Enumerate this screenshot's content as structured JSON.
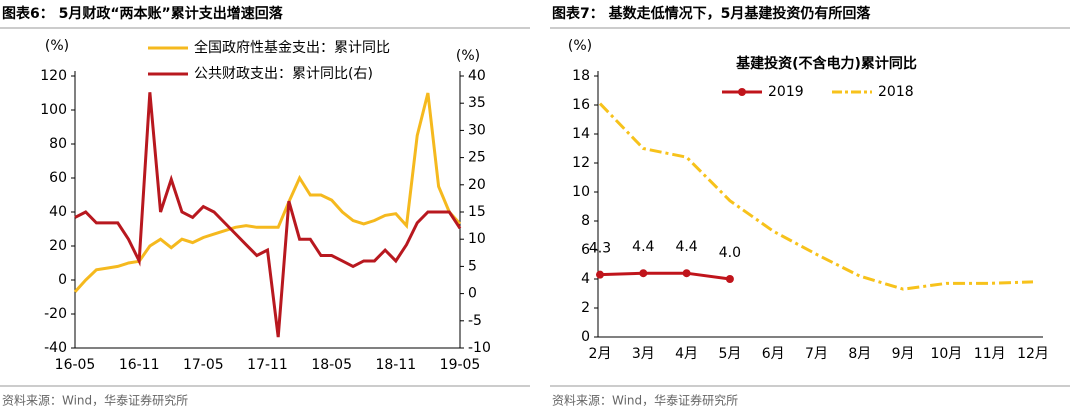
{
  "chart_data": [
    {
      "type": "line",
      "title": "图表6：  5月财政“两本账”累计支出增速回落",
      "source": "资料来源：Wind，华泰证券研究所",
      "ylabel": "(%)",
      "y2label": "(%)",
      "categories": [
        "16-05",
        null,
        null,
        null,
        null,
        null,
        "16-11",
        null,
        null,
        null,
        null,
        null,
        "17-05",
        null,
        null,
        null,
        null,
        null,
        "17-11",
        null,
        null,
        null,
        null,
        null,
        "18-05",
        null,
        null,
        null,
        null,
        null,
        "18-11",
        null,
        null,
        null,
        null,
        null,
        "19-05"
      ],
      "ylim": [
        -40,
        120
      ],
      "yticks": [
        -40,
        -20,
        0,
        20,
        40,
        60,
        80,
        100,
        120
      ],
      "y2lim": [
        -10,
        40
      ],
      "y2ticks": [
        -10,
        -5,
        0,
        5,
        10,
        15,
        20,
        25,
        30,
        35,
        40
      ],
      "legend": "top-center",
      "series": [
        {
          "name": "全国政府性基金支出：累计同比",
          "color": "#f5b91e",
          "values": [
            -7,
            0,
            6,
            7,
            8,
            10,
            11,
            20,
            24,
            19,
            24,
            22,
            25,
            27,
            29,
            31,
            32,
            31,
            31,
            31,
            46,
            60,
            50,
            50,
            47,
            40,
            35,
            33,
            35,
            38,
            39,
            32,
            85,
            110,
            55,
            40,
            33
          ]
        },
        {
          "name": "公共财政支出：累计同比(右)",
          "color": "#b8181f",
          "axis": "y2",
          "values": [
            14,
            15,
            13,
            13,
            13,
            10,
            6,
            37,
            15,
            21,
            15,
            14,
            16,
            15,
            13,
            11,
            9,
            7,
            8,
            -8,
            17,
            10,
            10,
            7,
            7,
            6,
            5,
            6,
            6,
            8,
            6,
            9,
            13,
            15,
            15,
            15,
            12
          ]
        }
      ]
    },
    {
      "type": "line",
      "title": "图表7：  基数走低情况下，5月基建投资仍有所回落",
      "source": "资料来源：Wind，华泰证券研究所",
      "subtitle": "基建投资(不含电力)累计同比",
      "ylabel": "(%)",
      "categories": [
        "2月",
        "3月",
        "4月",
        "5月",
        "6月",
        "7月",
        "8月",
        "9月",
        "10月",
        "11月",
        "12月"
      ],
      "ylim": [
        0,
        18
      ],
      "yticks": [
        0,
        2,
        4,
        6,
        8,
        10,
        12,
        14,
        16,
        18
      ],
      "legend": "top-center",
      "series": [
        {
          "name": "2019",
          "color": "#c0141b",
          "marker": "circle",
          "values": [
            4.3,
            4.4,
            4.4,
            4.0,
            null,
            null,
            null,
            null,
            null,
            null,
            null
          ],
          "value_labels": [
            "4.3",
            "4.4",
            "4.4",
            "4.0",
            null,
            null,
            null,
            null,
            null,
            null,
            null
          ]
        },
        {
          "name": "2018",
          "color": "#f7c21b",
          "line_style": "dashdot",
          "values": [
            16.1,
            13.0,
            12.4,
            9.4,
            7.3,
            5.7,
            4.2,
            3.3,
            3.7,
            3.7,
            3.8
          ]
        }
      ]
    }
  ]
}
